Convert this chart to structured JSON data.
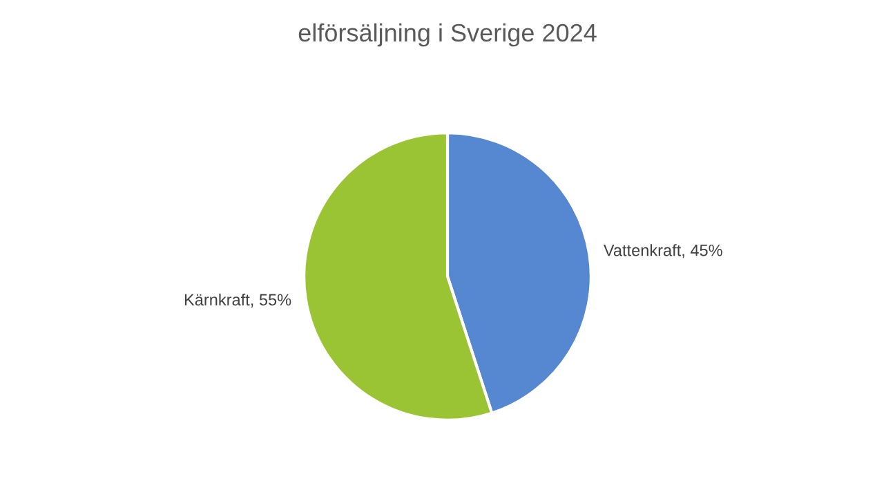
{
  "chart_data": {
    "type": "pie",
    "title": "elförsäljning i Sverige 2024",
    "categories": [
      "Vattenkraft",
      "Kärnkraft"
    ],
    "values": [
      45,
      55
    ],
    "colors": [
      "#5588d0",
      "#9ac433"
    ],
    "value_labels": [
      ", 45%",
      ", 55%"
    ]
  }
}
